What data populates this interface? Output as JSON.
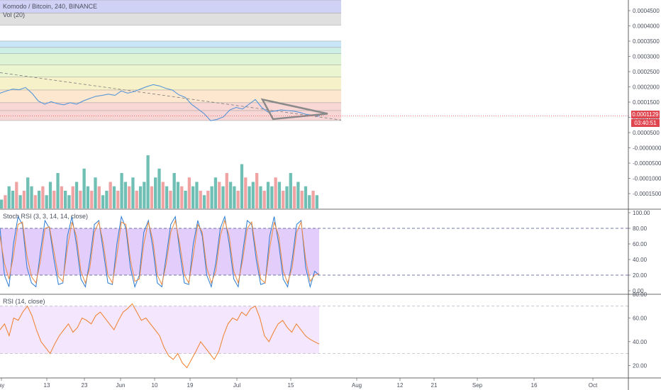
{
  "legends": {
    "main": "Komodo / Bitcoin, 240, BINANCE",
    "vol": "Vol (20)",
    "stoch": "Stoch RSI (3, 3, 14, 14, close)",
    "rsi": "RSI (14, close)"
  },
  "price_tag": {
    "price": "0.0001129",
    "countdown": "03:40:51"
  },
  "colors": {
    "price_line": "#4a90d9",
    "volume_up": "#6fbfb4",
    "volume_down": "#f0a3a3",
    "stoch_k": "#2b7bd1",
    "stoch_d": "#f08a3c",
    "rsi": "#f07e2a",
    "stoch_band": "#e3cdfb",
    "rsi_band": "#f3e6fd",
    "current_price": "#e0464f",
    "triangle": "#8a8a8a"
  },
  "chart_data": [
    {
      "type": "line",
      "name": "price",
      "title": "Komodo / Bitcoin, 240, BINANCE",
      "x_ticks": [
        "ay",
        "13",
        "23",
        "Jun",
        "10",
        "19",
        "Jul",
        "15",
        "Aug",
        "12",
        "21",
        "Sep",
        "16",
        "Oct"
      ],
      "y_ticks": [
        "0.0004500",
        "0.0004000",
        "0.0003500",
        "0.0003000",
        "0.0002500",
        "0.0002000",
        "0.0001500",
        "0.0001000",
        "0.0000500",
        "-0.0000000",
        "-0.0000500",
        "-0.0001000",
        "-0.0001500"
      ],
      "ylim": [
        -0.00018,
        0.00048
      ],
      "current_price": 0.0001129,
      "fib_levels": [
        0.00048,
        0.000439,
        0.0004,
        0.00035,
        0.00033,
        0.00031,
        0.000275,
        0.000236,
        0.000195,
        0.000155,
        0.00013,
        9.85e-05
      ],
      "fib_colors": [
        "#c7c9f3",
        "#d9d9d9",
        "#ffffff",
        "#bfe0f7",
        "#c4ebe0",
        "#d8f1cc",
        "#e8f3c8",
        "#f6efbf",
        "#fde3c5",
        "#f7d0cd",
        "#f7cfcf"
      ],
      "series": [
        {
          "values": [
            0.000185,
            0.000192,
            0.000198,
            0.000196,
            0.000203,
            0.000185,
            0.00016,
            0.00015,
            0.000158,
            0.000152,
            0.000148,
            0.000155,
            0.00015,
            0.00016,
            0.000168,
            0.000175,
            0.000178,
            0.000182,
            0.000178,
            0.000192,
            0.000185,
            0.00019,
            0.000198,
            0.000206,
            0.000212,
            0.000208,
            0.0002,
            0.000195,
            0.00018,
            0.000172,
            0.00015,
            0.000135,
            0.00012,
            9.8e-05,
            0.000102,
            0.00011,
            0.000132,
            0.00014,
            0.000135,
            0.00015,
            0.000165,
            0.00014,
            0.000125,
            0.000128,
            0.000132,
            0.00013,
            0.000128,
            0.000124,
            0.000118,
            0.000115,
            0.000112
          ]
        }
      ]
    },
    {
      "type": "bar",
      "name": "volume",
      "title": "Vol (20)",
      "values": [
        2,
        3,
        5,
        4,
        6,
        3,
        4,
        7,
        5,
        3,
        4,
        5,
        3,
        6,
        4,
        8,
        5,
        4,
        3,
        5,
        6,
        4,
        9,
        5,
        4,
        7,
        5,
        3,
        4,
        6,
        5,
        4,
        8,
        6,
        5,
        7,
        4,
        5,
        6,
        12,
        5,
        7,
        9,
        6,
        5,
        4,
        8,
        6,
        5,
        4,
        7,
        5,
        6,
        4,
        3,
        4,
        5,
        7,
        6,
        5,
        8,
        6,
        5,
        4,
        10,
        7,
        5,
        6,
        8,
        5,
        4,
        6,
        5,
        7,
        6,
        4,
        5,
        8,
        5,
        6,
        4,
        5,
        3,
        4,
        3
      ],
      "up": [
        1,
        0,
        1,
        1,
        0,
        1,
        0,
        1,
        1,
        0,
        1,
        0,
        1,
        1,
        0,
        1,
        0,
        1,
        1,
        0,
        1,
        0,
        1,
        1,
        0,
        1,
        0,
        1,
        1,
        0,
        1,
        0,
        1,
        1,
        0,
        1,
        0,
        1,
        1,
        1,
        0,
        1,
        1,
        0,
        1,
        0,
        1,
        1,
        0,
        1,
        0,
        1,
        1,
        0,
        1,
        0,
        1,
        1,
        0,
        1,
        0,
        1,
        1,
        0,
        1,
        0,
        1,
        1,
        0,
        1,
        0,
        1,
        1,
        0,
        1,
        0,
        1,
        1,
        0,
        1,
        0,
        1,
        1,
        0,
        1
      ]
    },
    {
      "type": "line",
      "name": "stoch_rsi",
      "title": "Stoch RSI (3, 3, 14, 14, close)",
      "y_ticks": [
        "100.00",
        "80.00",
        "60.00",
        "40.00",
        "20.00",
        "0.00"
      ],
      "ylim": [
        0,
        100
      ],
      "bands": [
        20,
        80
      ],
      "series": [
        {
          "name": "K",
          "values": [
            80,
            20,
            5,
            60,
            95,
            85,
            30,
            10,
            5,
            50,
            90,
            80,
            40,
            8,
            10,
            70,
            95,
            60,
            15,
            5,
            40,
            85,
            90,
            50,
            10,
            8,
            60,
            95,
            80,
            30,
            5,
            20,
            75,
            90,
            55,
            10,
            5,
            45,
            85,
            95,
            50,
            10,
            8,
            60,
            90,
            70,
            20,
            5,
            35,
            80,
            95,
            60,
            15,
            5,
            50,
            90,
            85,
            40,
            8,
            10,
            70,
            95,
            60,
            15,
            5,
            40,
            85,
            90,
            30,
            5,
            25,
            20
          ]
        },
        {
          "name": "D",
          "values": [
            70,
            35,
            15,
            45,
            85,
            88,
            45,
            18,
            10,
            38,
            80,
            82,
            50,
            18,
            12,
            55,
            88,
            70,
            25,
            10,
            30,
            75,
            88,
            60,
            20,
            10,
            45,
            88,
            85,
            40,
            12,
            15,
            60,
            88,
            65,
            20,
            8,
            35,
            75,
            90,
            60,
            20,
            10,
            45,
            85,
            75,
            30,
            10,
            25,
            70,
            90,
            70,
            25,
            10,
            40,
            80,
            88,
            50,
            15,
            10,
            55,
            88,
            70,
            25,
            10,
            30,
            75,
            88,
            40,
            12,
            20,
            22
          ]
        }
      ]
    },
    {
      "type": "line",
      "name": "rsi",
      "title": "RSI (14, close)",
      "y_ticks": [
        "80.00",
        "60.00",
        "40.00",
        "20.00"
      ],
      "ylim": [
        10,
        80
      ],
      "bands": [
        30,
        70
      ],
      "series": [
        {
          "name": "RSI",
          "values": [
            50,
            55,
            45,
            60,
            58,
            65,
            70,
            62,
            50,
            40,
            35,
            30,
            38,
            45,
            50,
            55,
            48,
            52,
            60,
            58,
            55,
            62,
            65,
            60,
            55,
            50,
            58,
            65,
            68,
            72,
            65,
            58,
            60,
            55,
            50,
            45,
            35,
            28,
            25,
            30,
            22,
            18,
            25,
            32,
            40,
            35,
            30,
            25,
            32,
            45,
            55,
            60,
            58,
            65,
            62,
            68,
            70,
            60,
            45,
            40,
            48,
            55,
            58,
            52,
            48,
            55,
            50,
            45,
            42,
            40,
            38
          ]
        }
      ]
    }
  ]
}
